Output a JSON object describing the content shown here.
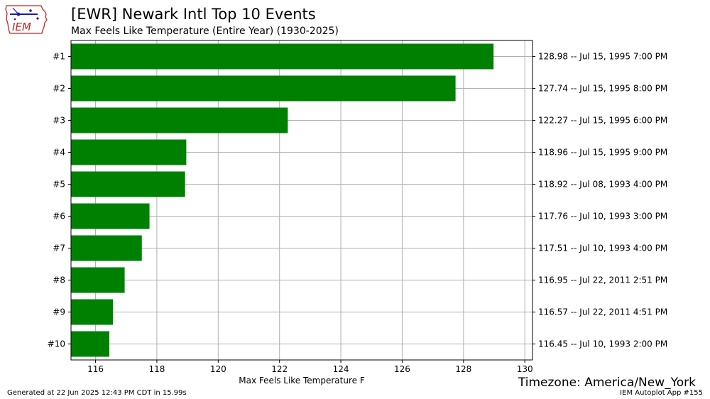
{
  "header": {
    "title": "[EWR] Newark Intl Top 10 Events",
    "subtitle": "Max Feels Like Temperature  (Entire Year) (1930-2025)"
  },
  "logo": {
    "text": "IEM"
  },
  "footer": {
    "generated": "Generated at 22 Jun 2025 12:43 PM CDT in 15.99s",
    "app": "IEM Autoplot App #155",
    "timezone": "Timezone: America/New_York"
  },
  "colors": {
    "bar": "#008000",
    "grid": "#b0b0b0",
    "logo_red": "#cc2222",
    "logo_blue": "#1a1aa6"
  },
  "chart_data": {
    "type": "bar",
    "orientation": "horizontal",
    "categories": [
      "#1",
      "#2",
      "#3",
      "#4",
      "#5",
      "#6",
      "#7",
      "#8",
      "#9",
      "#10"
    ],
    "values": [
      128.98,
      127.74,
      122.27,
      118.96,
      118.92,
      117.76,
      117.51,
      116.95,
      116.57,
      116.45
    ],
    "right_labels": [
      "128.98 -- Jul 15, 1995 7:00 PM",
      "127.74 -- Jul 15, 1995 8:00 PM",
      "122.27 -- Jul 15, 1995 6:00 PM",
      "118.96 -- Jul 15, 1995 9:00 PM",
      "118.92 -- Jul 08, 1993 4:00 PM",
      "117.76 -- Jul 10, 1993 3:00 PM",
      "117.51 -- Jul 10, 1993 4:00 PM",
      "116.95 -- Jul 22, 2011 2:51 PM",
      "116.57 -- Jul 22, 2011 4:51 PM",
      "116.45 -- Jul 10, 1993 2:00 PM"
    ],
    "xlabel": "Max Feels Like Temperature F",
    "ylabel": "",
    "xlim": [
      115.2,
      130.25
    ],
    "xticks": [
      116,
      118,
      120,
      122,
      124,
      126,
      128,
      130
    ],
    "grid": true,
    "legend": "none"
  }
}
